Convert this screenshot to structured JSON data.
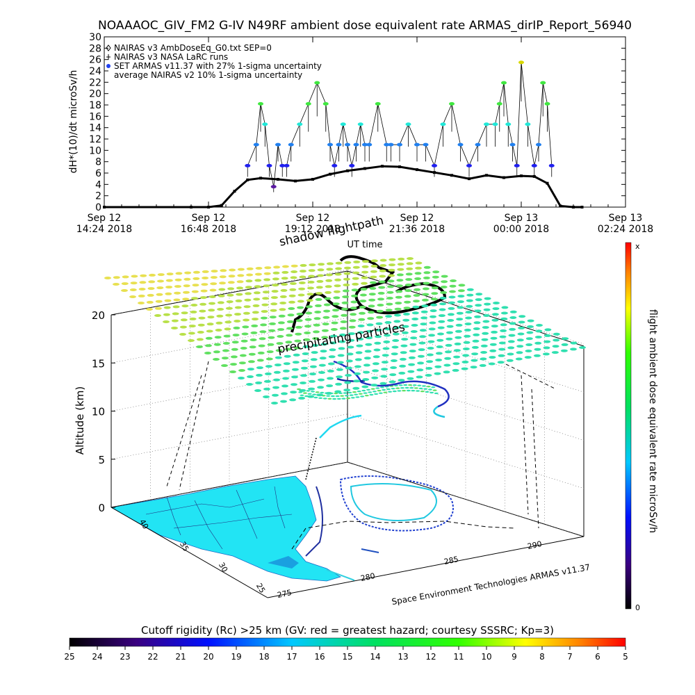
{
  "title": "NOAAAOC_GIV_FM2 G-IV   N49RF  ambient dose equivalent rate ARMAS_dirIP_Report_56940",
  "chart_data": [
    {
      "type": "scatter",
      "ylabel": "dH*(10)/dt microSv/h",
      "ylim": [
        0,
        30
      ],
      "yticks": [
        "0",
        "2",
        "4",
        "6",
        "8",
        "10",
        "12",
        "14",
        "16",
        "18",
        "20",
        "22",
        "24",
        "26",
        "28",
        "30"
      ],
      "xlim": [
        0,
        12
      ],
      "xticks": [
        {
          "v": 0,
          "line1": "Sep 12",
          "line2": "14:24 2018"
        },
        {
          "v": 2.4,
          "line1": "Sep 12",
          "line2": "16:48 2018"
        },
        {
          "v": 4.8,
          "line1": "Sep 12",
          "line2": "19:12 2018"
        },
        {
          "v": 7.2,
          "line1": "Sep 12",
          "line2": "21:36 2018"
        },
        {
          "v": 9.6,
          "line1": "Sep 13",
          "line2": "00:00 2018"
        },
        {
          "v": 12.0,
          "line1": "Sep 13",
          "line2": "02:24 2018"
        }
      ],
      "legend": [
        {
          "symbol": "diamond",
          "label": "NAIRAS v3 AmbDoseEq_G0.txt SEP=0"
        },
        {
          "symbol": "plus",
          "label": "NAIRAS v3 NASA LaRC runs"
        },
        {
          "symbol": "dot",
          "label": "SET ARMAS v11.37 with 27% 1-sigma uncertainty"
        },
        {
          "symbol": "square",
          "label": "average NAIRAS v2 10% 1-sigma uncertainty"
        }
      ],
      "legend_position": "top-left",
      "series": [
        {
          "name": "average NAIRAS v2 10% 1-sigma uncertainty",
          "color": "#000000",
          "x": [
            0,
            2.0,
            2.4,
            2.7,
            3.0,
            3.3,
            3.6,
            4.0,
            4.4,
            4.8,
            5.2,
            5.6,
            6.0,
            6.4,
            6.8,
            7.2,
            7.6,
            8.0,
            8.4,
            8.8,
            9.2,
            9.6,
            9.9,
            10.2,
            10.5,
            10.8,
            11.0
          ],
          "y": [
            0,
            0,
            0,
            0.3,
            2.8,
            4.8,
            5.1,
            4.9,
            4.6,
            4.9,
            5.8,
            6.4,
            6.8,
            7.2,
            7.1,
            6.6,
            6.1,
            5.6,
            5.0,
            5.6,
            5.2,
            5.5,
            5.4,
            4.2,
            0.2,
            0,
            0
          ]
        },
        {
          "name": "SET ARMAS v11.37 with 27% 1-sigma uncertainty",
          "x": [
            3.3,
            3.5,
            3.6,
            3.7,
            3.8,
            3.9,
            4.0,
            4.1,
            4.2,
            4.3,
            4.5,
            4.7,
            4.9,
            5.1,
            5.2,
            5.3,
            5.4,
            5.5,
            5.6,
            5.7,
            5.8,
            5.9,
            6.0,
            6.1,
            6.3,
            6.5,
            6.6,
            6.8,
            7.0,
            7.2,
            7.4,
            7.6,
            7.8,
            8.0,
            8.2,
            8.4,
            8.6,
            8.8,
            9.0,
            9.1,
            9.2,
            9.3,
            9.4,
            9.5,
            9.6,
            9.75,
            9.9,
            10.0,
            10.1,
            10.2,
            10.3
          ],
          "y": [
            7.3,
            11,
            18.2,
            14.6,
            7.3,
            3.6,
            11,
            7.3,
            7.3,
            11,
            14.6,
            18.2,
            21.9,
            18.2,
            11,
            7.3,
            11,
            14.6,
            11,
            7.3,
            11,
            14.6,
            11,
            11,
            18.2,
            11,
            11,
            11,
            14.6,
            11,
            11,
            7.3,
            14.6,
            18.2,
            11,
            7.3,
            11,
            14.6,
            14.6,
            18.2,
            21.9,
            14.6,
            11,
            7.3,
            25.5,
            14.6,
            7.3,
            11,
            21.9,
            18.2,
            7.3
          ]
        }
      ]
    },
    {
      "type": "scatter",
      "subtitle": "shadow flightpath",
      "xlabel": "UT time",
      "zlabel": "Altitude (km)",
      "zticks": [
        "0",
        "5",
        "10",
        "15",
        "20"
      ],
      "lat_ticks": [
        "25",
        "30",
        "35",
        "40"
      ],
      "lon_ticks": [
        "275",
        "280",
        "285",
        "290"
      ],
      "annotation": "precipitating particles",
      "credit": "Space Environment Technologies ARMAS v11.37"
    }
  ],
  "side_colorbar": {
    "label": "flight ambient dose equivalent rate microSv/h",
    "top": "x",
    "bottom": "0"
  },
  "bottom_colorbar": {
    "title": "Cutoff rigidity (Rc) >25 km (GV: red = greatest hazard; courtesy SSSRC; Kp=3)",
    "ticks": [
      "25",
      "24",
      "23",
      "22",
      "21",
      "20",
      "19",
      "18",
      "17",
      "16",
      "15",
      "14",
      "13",
      "12",
      "11",
      "10",
      "9",
      "8",
      "7",
      "6",
      "5"
    ]
  }
}
